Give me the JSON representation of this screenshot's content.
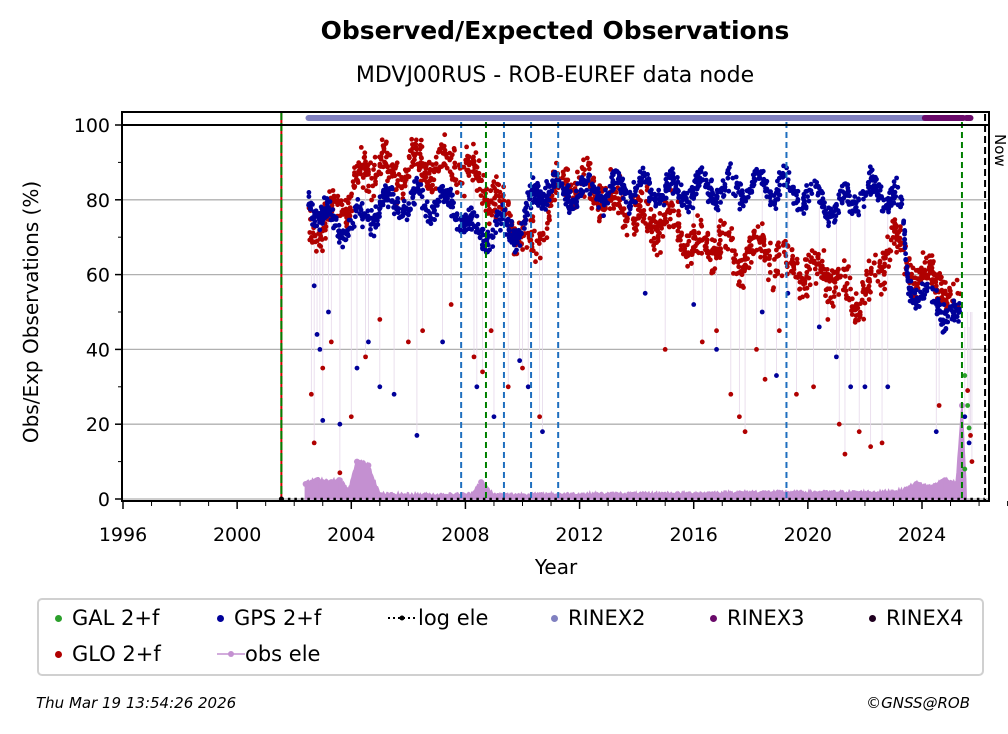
{
  "chart_data": {
    "type": "scatter",
    "title": "Observed/Expected Observations",
    "subtitle": "MDVJ00RUS - ROB-EUREF data node",
    "xlabel": "Year",
    "ylabel": "Obs/Exp Observations (%)",
    "xlim": [
      1996,
      2027
    ],
    "ylim": [
      -0.5,
      103.5
    ],
    "x_ticks": [
      1996,
      2000,
      2004,
      2008,
      2012,
      2016,
      2020,
      2024
    ],
    "y_ticks": [
      0,
      20,
      40,
      60,
      80,
      100
    ],
    "grid": "horizontal",
    "now_label": "Now",
    "now_year": 2026.21,
    "vertical_events": [
      {
        "year": 2001.55,
        "style": "red-green",
        "color": "#008000"
      },
      {
        "year": 2007.85,
        "style": "dashed",
        "color": "#1f6fbf"
      },
      {
        "year": 2008.72,
        "style": "dashed",
        "color": "#008000"
      },
      {
        "year": 2009.35,
        "style": "dashed",
        "color": "#1f6fbf"
      },
      {
        "year": 2010.3,
        "style": "dashed",
        "color": "#1f6fbf"
      },
      {
        "year": 2011.25,
        "style": "dashed",
        "color": "#1f6fbf"
      },
      {
        "year": 2019.25,
        "style": "dashed",
        "color": "#1f6fbf"
      },
      {
        "year": 2025.4,
        "style": "dashed",
        "color": "#008000"
      }
    ],
    "rinex_bars": [
      {
        "name": "RINEX2",
        "start": 2002.5,
        "end": 2024.1,
        "color": "#8080c0"
      },
      {
        "name": "RINEX3",
        "start": 2024.1,
        "end": 2025.45,
        "color": "#6a0a6a"
      },
      {
        "name": "RINEX3",
        "start": 2025.55,
        "end": 2025.7,
        "color": "#6a0a6a"
      }
    ],
    "series": [
      {
        "name": "GLO 2+f",
        "color": "#b00000",
        "trend": [
          [
            2002.5,
            75
          ],
          [
            2003,
            72
          ],
          [
            2003.5,
            78
          ],
          [
            2004,
            80
          ],
          [
            2004.5,
            88
          ],
          [
            2005,
            90
          ],
          [
            2005.5,
            86
          ],
          [
            2006,
            88
          ],
          [
            2006.5,
            90
          ],
          [
            2007,
            88
          ],
          [
            2007.5,
            90
          ],
          [
            2008,
            88
          ],
          [
            2008.5,
            84
          ],
          [
            2009,
            80
          ],
          [
            2009.5,
            76
          ],
          [
            2010,
            70
          ],
          [
            2010.5,
            66
          ],
          [
            2011,
            80
          ],
          [
            2011.5,
            85
          ],
          [
            2012,
            84
          ],
          [
            2012.5,
            82
          ],
          [
            2013,
            80
          ],
          [
            2013.5,
            78
          ],
          [
            2014,
            76
          ],
          [
            2014.5,
            74
          ],
          [
            2015,
            76
          ],
          [
            2015.5,
            72
          ],
          [
            2016,
            68
          ],
          [
            2016.5,
            66
          ],
          [
            2017,
            70
          ],
          [
            2017.5,
            62
          ],
          [
            2018,
            68
          ],
          [
            2018.5,
            66
          ],
          [
            2019,
            64
          ],
          [
            2019.5,
            62
          ],
          [
            2020,
            60
          ],
          [
            2020.5,
            62
          ],
          [
            2021,
            58
          ],
          [
            2021.5,
            54
          ],
          [
            2022,
            56
          ],
          [
            2022.5,
            60
          ],
          [
            2023,
            72
          ],
          [
            2023.5,
            62
          ],
          [
            2024,
            60
          ],
          [
            2024.5,
            58
          ],
          [
            2025,
            55
          ],
          [
            2025.35,
            50
          ]
        ],
        "spread": 8,
        "outliers": [
          [
            2002.6,
            28
          ],
          [
            2002.7,
            15
          ],
          [
            2003,
            35
          ],
          [
            2003.3,
            42
          ],
          [
            2003.6,
            7
          ],
          [
            2004,
            22
          ],
          [
            2004.5,
            38
          ],
          [
            2005,
            48
          ],
          [
            2006,
            42
          ],
          [
            2006.5,
            45
          ],
          [
            2007.5,
            52
          ],
          [
            2008.3,
            38
          ],
          [
            2008.6,
            34
          ],
          [
            2008.9,
            45
          ],
          [
            2009.5,
            30
          ],
          [
            2010,
            35
          ],
          [
            2010.6,
            22
          ],
          [
            2015,
            40
          ],
          [
            2016.3,
            42
          ],
          [
            2016.8,
            45
          ],
          [
            2017.3,
            28
          ],
          [
            2017.6,
            22
          ],
          [
            2017.8,
            18
          ],
          [
            2018.2,
            40
          ],
          [
            2018.5,
            32
          ],
          [
            2019,
            45
          ],
          [
            2019.6,
            28
          ],
          [
            2020.2,
            30
          ],
          [
            2020.7,
            48
          ],
          [
            2021.1,
            20
          ],
          [
            2021.3,
            12
          ],
          [
            2021.8,
            18
          ],
          [
            2022.2,
            14
          ],
          [
            2022.6,
            15
          ],
          [
            2024.6,
            25
          ],
          [
            2025.6,
            29
          ],
          [
            2025.7,
            17
          ],
          [
            2025.75,
            10
          ]
        ]
      },
      {
        "name": "GPS 2+f",
        "color": "#000099",
        "trend": [
          [
            2002.5,
            80
          ],
          [
            2003,
            76
          ],
          [
            2003.5,
            72
          ],
          [
            2004,
            73
          ],
          [
            2004.5,
            75
          ],
          [
            2005,
            78
          ],
          [
            2005.5,
            80
          ],
          [
            2006,
            78
          ],
          [
            2006.5,
            80
          ],
          [
            2007,
            78
          ],
          [
            2007.5,
            80
          ],
          [
            2008,
            74
          ],
          [
            2008.5,
            70
          ],
          [
            2009,
            72
          ],
          [
            2009.5,
            73
          ],
          [
            2010,
            72
          ],
          [
            2010.5,
            82
          ],
          [
            2011,
            84
          ],
          [
            2011.5,
            82
          ],
          [
            2012,
            82
          ],
          [
            2012.5,
            83
          ],
          [
            2013,
            82
          ],
          [
            2013.5,
            83
          ],
          [
            2014,
            82
          ],
          [
            2014.5,
            83
          ],
          [
            2015,
            82
          ],
          [
            2015.5,
            83
          ],
          [
            2016,
            82
          ],
          [
            2016.5,
            84
          ],
          [
            2017,
            82
          ],
          [
            2017.5,
            84
          ],
          [
            2018,
            83
          ],
          [
            2018.5,
            84
          ],
          [
            2019,
            83
          ],
          [
            2019.5,
            82
          ],
          [
            2020,
            82
          ],
          [
            2020.5,
            80
          ],
          [
            2021,
            78
          ],
          [
            2021.5,
            80
          ],
          [
            2022,
            82
          ],
          [
            2022.5,
            82
          ],
          [
            2023,
            82
          ],
          [
            2023.3,
            76
          ],
          [
            2023.5,
            58
          ],
          [
            2024,
            55
          ],
          [
            2024.5,
            52
          ],
          [
            2025,
            50
          ],
          [
            2025.35,
            46
          ]
        ],
        "spread": 5,
        "outliers": [
          [
            2002.7,
            57
          ],
          [
            2002.8,
            44
          ],
          [
            2002.9,
            40
          ],
          [
            2003,
            21
          ],
          [
            2003.2,
            50
          ],
          [
            2003.6,
            20
          ],
          [
            2004.2,
            35
          ],
          [
            2004.6,
            42
          ],
          [
            2005,
            30
          ],
          [
            2005.5,
            28
          ],
          [
            2006.3,
            17
          ],
          [
            2007.2,
            42
          ],
          [
            2008.4,
            30
          ],
          [
            2009,
            22
          ],
          [
            2009.9,
            37
          ],
          [
            2010.2,
            30
          ],
          [
            2010.7,
            18
          ],
          [
            2014.3,
            55
          ],
          [
            2016,
            52
          ],
          [
            2016.8,
            40
          ],
          [
            2018.4,
            50
          ],
          [
            2018.9,
            33
          ],
          [
            2019.3,
            55
          ],
          [
            2020.4,
            46
          ],
          [
            2021,
            38
          ],
          [
            2021.5,
            30
          ],
          [
            2022,
            30
          ],
          [
            2022.8,
            30
          ],
          [
            2024.5,
            18
          ],
          [
            2025.5,
            22
          ],
          [
            2025.65,
            15
          ]
        ]
      },
      {
        "name": "GAL 2+f",
        "color": "#2ca02c",
        "points": [
          [
            2025.5,
            33
          ],
          [
            2025.6,
            25
          ],
          [
            2025.65,
            19
          ],
          [
            2025.5,
            8
          ]
        ]
      },
      {
        "name": "obs ele",
        "color": "#c490d1",
        "trend": [
          [
            2002.4,
            4
          ],
          [
            2002.8,
            5
          ],
          [
            2003.3,
            4.5
          ],
          [
            2003.6,
            5
          ],
          [
            2003.9,
            2
          ],
          [
            2004.2,
            10
          ],
          [
            2004.6,
            9
          ],
          [
            2005,
            1
          ],
          [
            2007,
            0.8
          ],
          [
            2008.2,
            1
          ],
          [
            2008.55,
            4.5
          ],
          [
            2009,
            0.8
          ],
          [
            2012,
            1
          ],
          [
            2016,
            1.2
          ],
          [
            2018,
            1.5
          ],
          [
            2020,
            1.5
          ],
          [
            2022.5,
            1.5
          ],
          [
            2023.3,
            2
          ],
          [
            2023.8,
            4
          ],
          [
            2024.3,
            3
          ],
          [
            2024.8,
            5
          ],
          [
            2025.2,
            4
          ],
          [
            2025.4,
            25
          ],
          [
            2025.55,
            2
          ]
        ]
      },
      {
        "name": "log ele",
        "color": "#000000",
        "style": "dotted",
        "points": [
          [
            2001.55,
            0
          ],
          [
            2026.2,
            0
          ]
        ]
      }
    ],
    "legend": {
      "placement": "below",
      "entries": [
        {
          "label": "GAL 2+f",
          "color": "#2ca02c",
          "marker": "dot"
        },
        {
          "label": "GPS 2+f",
          "color": "#000099",
          "marker": "dot"
        },
        {
          "label": "log ele",
          "color": "#000000",
          "marker": "dotted-line"
        },
        {
          "label": "RINEX2",
          "color": "#8080c0",
          "marker": "dot"
        },
        {
          "label": "RINEX3",
          "color": "#6a0a6a",
          "marker": "dot"
        },
        {
          "label": "RINEX4",
          "color": "#200020",
          "marker": "dot"
        },
        {
          "label": "GLO 2+f",
          "color": "#b00000",
          "marker": "dot"
        },
        {
          "label": "obs ele",
          "color": "#c490d1",
          "marker": "line-dot"
        }
      ]
    }
  },
  "footer": {
    "timestamp": "Thu Mar 19 13:54:26 2026",
    "credit": "©GNSS@ROB"
  }
}
